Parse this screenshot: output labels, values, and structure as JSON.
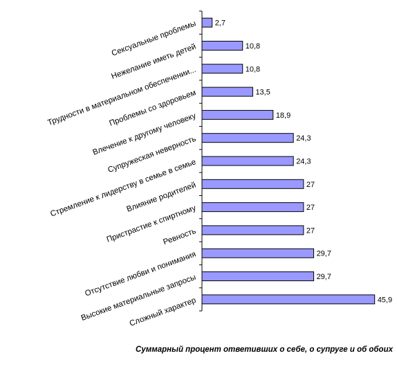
{
  "chart_data": {
    "type": "bar",
    "orientation": "horizontal",
    "categories": [
      "Сексуальные проблемы",
      "Нежелание иметь детей",
      "Трудности в материальном обеспечении...",
      "Проблемы со здоровьем",
      "Влечение к другому человеку",
      "Супружеская неверность",
      "Стремление к лидерству в семье в семье",
      "Влияние родителей",
      "Пристрастие к спиртному",
      "Ревность",
      "Отсутствие любви и понимания",
      "Высокие материальные запросы",
      "Сложный  характер"
    ],
    "values": [
      2.7,
      10.8,
      10.8,
      13.5,
      18.9,
      24.3,
      24.3,
      27,
      27,
      27,
      29.7,
      29.7,
      45.9
    ],
    "value_labels": [
      "2,7",
      "10,8",
      "10,8",
      "13,5",
      "18,9",
      "24,3",
      "24,3",
      "27",
      "27",
      "27",
      "29,7",
      "29,7",
      "45,9"
    ],
    "xlim": [
      0,
      50
    ],
    "bar_color": "#9999ff",
    "grid": false,
    "title": "",
    "xlabel": "Суммарный процент ответивших о себе, о супруге и об обоих",
    "ylabel": ""
  }
}
